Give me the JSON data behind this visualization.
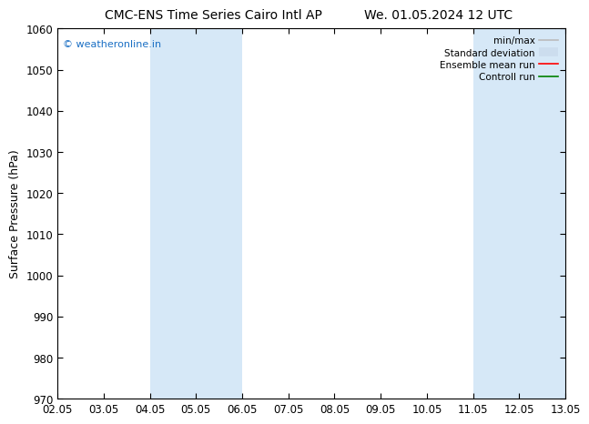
{
  "title_left": "CMC-ENS Time Series Cairo Intl AP",
  "title_right": "We. 01.05.2024 12 UTC",
  "ylabel": "Surface Pressure (hPa)",
  "ylim": [
    970,
    1060
  ],
  "yticks": [
    970,
    980,
    990,
    1000,
    1010,
    1020,
    1030,
    1040,
    1050,
    1060
  ],
  "xlim_start": 0,
  "xlim_end": 11,
  "xtick_labels": [
    "02.05",
    "03.05",
    "04.05",
    "05.05",
    "06.05",
    "07.05",
    "08.05",
    "09.05",
    "10.05",
    "11.05",
    "12.05",
    "13.05"
  ],
  "xtick_positions": [
    0,
    1,
    2,
    3,
    4,
    5,
    6,
    7,
    8,
    9,
    10,
    11
  ],
  "shaded_regions": [
    {
      "xmin": 2,
      "xmax": 4,
      "color": "#d6e8f7"
    },
    {
      "xmin": 9,
      "xmax": 11,
      "color": "#d6e8f7"
    }
  ],
  "watermark_text": "© weatheronline.in",
  "watermark_color": "#1a6fc4",
  "background_color": "#ffffff",
  "legend_entries": [
    {
      "label": "min/max",
      "color": "#bbbbbb",
      "lw": 1.2,
      "ls": "-"
    },
    {
      "label": "Standard deviation",
      "color": "#ccddee",
      "lw": 7,
      "ls": "-"
    },
    {
      "label": "Ensemble mean run",
      "color": "red",
      "lw": 1.2,
      "ls": "-"
    },
    {
      "label": "Controll run",
      "color": "green",
      "lw": 1.2,
      "ls": "-"
    }
  ],
  "title_fontsize": 10,
  "axis_label_fontsize": 9,
  "tick_fontsize": 8.5,
  "legend_fontsize": 7.5
}
